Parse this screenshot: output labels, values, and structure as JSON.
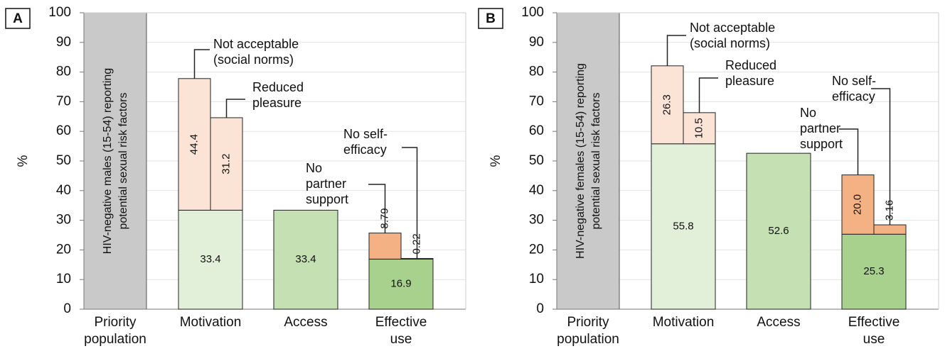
{
  "chart_data": [
    {
      "type": "bar",
      "label": "A",
      "ylabel": "%",
      "ylim": [
        0,
        100
      ],
      "yticks": [
        0,
        10,
        20,
        30,
        40,
        50,
        60,
        70,
        80,
        90,
        100
      ],
      "grid": true,
      "categories": [
        "Priority\npopulation",
        "Motivation",
        "Access",
        "Effective\nuse"
      ],
      "population": "HIV-negative males (15-54) reporting\npotential sexual risk factors",
      "population_color": "#c9c9c9",
      "base": {
        "values": [
          null,
          33.4,
          33.4,
          16.9
        ],
        "colors": [
          null,
          "#e2efd9",
          "#c5e0b3",
          "#a9d18e"
        ]
      },
      "series": [
        {
          "name": "Not acceptable\n(social norms)",
          "color": "#fbe4d5",
          "values": [
            null,
            44.4,
            null,
            null
          ]
        },
        {
          "name": "Reduced\npleasure",
          "color": "#fbe4d5",
          "values": [
            null,
            31.2,
            null,
            null
          ]
        },
        {
          "name": "No\npartner\nsupport",
          "color": "#f4b183",
          "values": [
            null,
            null,
            null,
            8.79
          ]
        },
        {
          "name": "No self-\nefficacy",
          "color": "#f4b183",
          "values": [
            null,
            null,
            null,
            0.22
          ]
        }
      ]
    },
    {
      "type": "bar",
      "label": "B",
      "ylabel": "%",
      "ylim": [
        0,
        100
      ],
      "yticks": [
        0,
        10,
        20,
        30,
        40,
        50,
        60,
        70,
        80,
        90,
        100
      ],
      "grid": true,
      "categories": [
        "Priority\npopulation",
        "Motivation",
        "Access",
        "Effective\nuse"
      ],
      "population": "HIV-negative females (15-54) reporting\npotential sexual risk factors",
      "population_color": "#c9c9c9",
      "base": {
        "values": [
          null,
          55.8,
          52.6,
          25.3
        ],
        "colors": [
          null,
          "#e2efd9",
          "#c5e0b3",
          "#a9d18e"
        ]
      },
      "series": [
        {
          "name": "Not acceptable\n(social norms)",
          "color": "#fbe4d5",
          "values": [
            null,
            26.3,
            null,
            null
          ]
        },
        {
          "name": "Reduced\npleasure",
          "color": "#fbe4d5",
          "values": [
            null,
            10.5,
            null,
            null
          ]
        },
        {
          "name": "No\npartner\nsupport",
          "color": "#f4b183",
          "values": [
            null,
            null,
            null,
            20
          ],
          "value_labels": [
            null,
            null,
            null,
            "20.0"
          ]
        },
        {
          "name": "No self-\nefficacy",
          "color": "#f4b183",
          "values": [
            null,
            null,
            null,
            3.16
          ]
        }
      ]
    }
  ]
}
